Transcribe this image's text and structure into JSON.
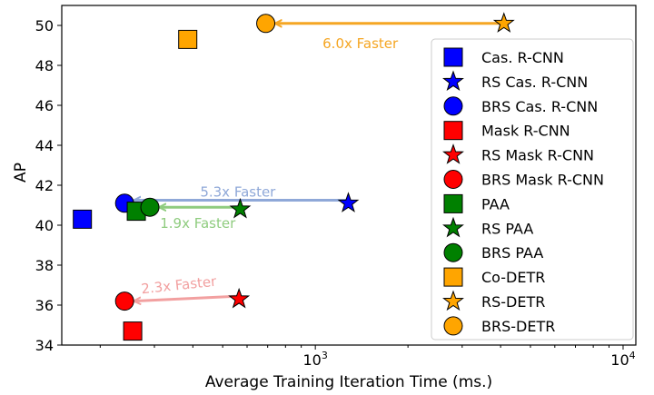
{
  "chart_data": {
    "type": "scatter",
    "title": "",
    "xlabel": "Average Training Iteration Time (ms.)",
    "ylabel": "AP",
    "x_scale": "log",
    "xlim": [
      150,
      11000
    ],
    "ylim": [
      34,
      51
    ],
    "x_ticks": [
      {
        "value": 1000,
        "base": "10",
        "exp": "3"
      },
      {
        "value": 10000,
        "base": "10",
        "exp": "4"
      }
    ],
    "y_ticks": [
      34,
      36,
      38,
      40,
      42,
      44,
      46,
      48,
      50
    ],
    "grid": false,
    "legend_position": "right",
    "series": [
      {
        "name": "Cas. R-CNN",
        "marker": "square",
        "color": "#0000ff",
        "x": 175,
        "y": 40.3
      },
      {
        "name": "RS Cas. R-CNN",
        "marker": "star",
        "color": "#0000ff",
        "x": 1280,
        "y": 41.1
      },
      {
        "name": "BRS Cas. R-CNN",
        "marker": "circle",
        "color": "#0000ff",
        "x": 240,
        "y": 41.1
      },
      {
        "name": "Mask R-CNN",
        "marker": "square",
        "color": "#ff0000",
        "x": 255,
        "y": 34.7
      },
      {
        "name": "RS Mask R-CNN",
        "marker": "star",
        "color": "#ff0000",
        "x": 565,
        "y": 36.3
      },
      {
        "name": "BRS Mask R-CNN",
        "marker": "circle",
        "color": "#ff0000",
        "x": 240,
        "y": 36.2
      },
      {
        "name": "PAA",
        "marker": "square",
        "color": "#008000",
        "x": 262,
        "y": 40.7
      },
      {
        "name": "RS PAA",
        "marker": "star",
        "color": "#008000",
        "x": 570,
        "y": 40.8
      },
      {
        "name": "BRS PAA",
        "marker": "circle",
        "color": "#008000",
        "x": 290,
        "y": 40.9
      },
      {
        "name": "Co-DETR",
        "marker": "square",
        "color": "#ffa500",
        "x": 385,
        "y": 49.3
      },
      {
        "name": "RS-DETR",
        "marker": "star",
        "color": "#ffa500",
        "x": 4100,
        "y": 50.1
      },
      {
        "name": "BRS-DETR",
        "marker": "circle",
        "color": "#ffa500",
        "x": 690,
        "y": 50.1
      }
    ],
    "annotations": [
      {
        "text": "6.0x Faster",
        "color": "#f5a623",
        "from": [
          4100,
          50.1
        ],
        "to": [
          690,
          50.1
        ],
        "label_at": [
          1400,
          49.1
        ],
        "rotate": 0
      },
      {
        "text": "5.3x Faster",
        "color": "#8fa8d8",
        "from": [
          1280,
          41.25
        ],
        "to": [
          240,
          41.25
        ],
        "label_at": [
          560,
          41.65
        ],
        "rotate": 0
      },
      {
        "text": "1.9x Faster",
        "color": "#8fcc7f",
        "from": [
          570,
          40.9
        ],
        "to": [
          290,
          40.9
        ],
        "label_at": [
          415,
          40.1
        ],
        "rotate": 0
      },
      {
        "text": "2.3x Faster",
        "color": "#f2a0a0",
        "from": [
          565,
          36.45
        ],
        "to": [
          240,
          36.2
        ],
        "label_at": [
          360,
          37.0
        ],
        "rotate": -6
      }
    ]
  }
}
